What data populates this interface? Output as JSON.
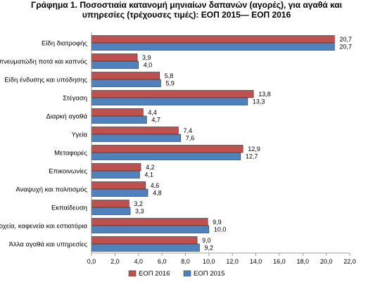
{
  "chart_data": {
    "type": "bar",
    "orientation": "horizontal",
    "title": "Γράφημα 1. Ποσοστιαία κατανομή μηνιαίων δαπανών (αγορές), για αγαθά και υπηρεσίες (τρέχουσες τιμές): ΕΟΠ 2015— ΕΟΠ 2016",
    "title_lines": [
      "Γράφημα 1. Ποσοστιαία κατανομή μηνιαίων δαπανών (αγορές), για αγαθά και",
      "υπηρεσίες (τρέχουσες τιμές): ΕΟΠ 2015— ΕΟΠ 2016"
    ],
    "categories": [
      "Είδη διατροφής",
      "Οινοπνευματώδη ποτά και καπνός",
      "Είδη ένδυσης και υπόδησης",
      "Στέγαση",
      "Διαρκή αγαθά",
      "Υγεία",
      "Μεταφορές",
      "Επικοινωνίες",
      "Αναψυχή και πολιτισμός",
      "Εκπαίδευση",
      "Ξενοδοχεία, καφενεία και εστιατόρια",
      "Άλλα αγαθά και υπηρεσίες"
    ],
    "series": [
      {
        "name": "ΕΟΠ 2016",
        "color": "#c0504d",
        "values": [
          20.7,
          3.9,
          5.8,
          13.8,
          4.4,
          7.4,
          12.9,
          4.2,
          4.6,
          3.2,
          9.9,
          9.0
        ],
        "labels": [
          "20,7",
          "3,9",
          "5,8",
          "13,8",
          "4,4",
          "7,4",
          "12,9",
          "4,2",
          "4,6",
          "3,2",
          "9,9",
          "9,0"
        ]
      },
      {
        "name": "ΕΟΠ 2015",
        "color": "#4f81bd",
        "values": [
          20.7,
          4.0,
          5.9,
          13.3,
          4.7,
          7.6,
          12.7,
          4.1,
          4.8,
          3.3,
          10.0,
          9.2
        ],
        "labels": [
          "20,7",
          "4,0",
          "5,9",
          "13,3",
          "4,7",
          "7,6",
          "12,7",
          "4,1",
          "4,8",
          "3,3",
          "10,0",
          "9,2"
        ]
      }
    ],
    "xlim": [
      0,
      22
    ],
    "x_ticks": [
      "0,0",
      "2,0",
      "4,0",
      "6,0",
      "8,0",
      "10,0",
      "12,0",
      "14,0",
      "16,0",
      "18,0",
      "20,0",
      "22,0"
    ],
    "grid": false,
    "legend_position": "bottom"
  }
}
